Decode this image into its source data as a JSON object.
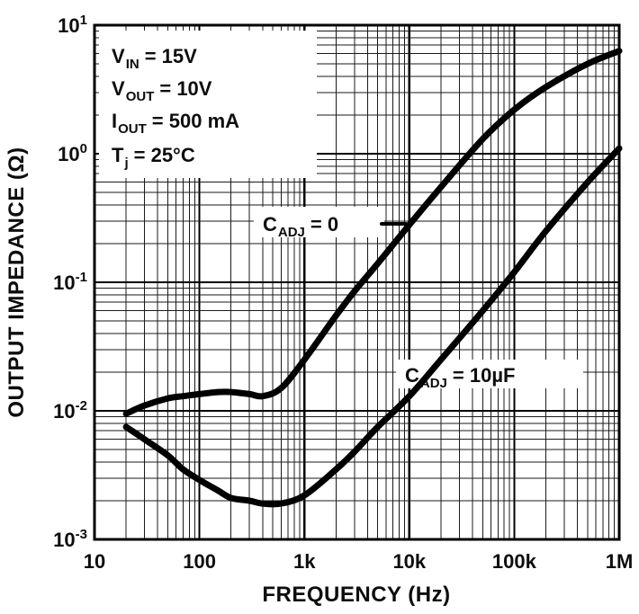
{
  "chart_data": {
    "type": "line",
    "x_scale": "log",
    "y_scale": "log",
    "xlabel": "FREQUENCY (Hz)",
    "ylabel": "OUTPUT IMPEDANCE (Ω)",
    "xlim": [
      10,
      1000000
    ],
    "ylim": [
      0.001,
      10
    ],
    "grid": "log minor and major gridlines on both axes",
    "legend_position": "inline curve labels",
    "x_ticks": [
      {
        "value": 10,
        "label": "10"
      },
      {
        "value": 100,
        "label": "100"
      },
      {
        "value": 1000,
        "label": "1k"
      },
      {
        "value": 10000,
        "label": "10k"
      },
      {
        "value": 100000,
        "label": "100k"
      },
      {
        "value": 1000000,
        "label": "1M"
      }
    ],
    "y_ticks": [
      {
        "value": 10,
        "base": "10",
        "exp": "1"
      },
      {
        "value": 1,
        "base": "10",
        "exp": "0"
      },
      {
        "value": 0.1,
        "base": "10",
        "exp": "-1"
      },
      {
        "value": 0.01,
        "base": "10",
        "exp": "-2"
      },
      {
        "value": 0.001,
        "base": "10",
        "exp": "-3"
      }
    ],
    "conditions": [
      {
        "main": "V",
        "sub": "IN",
        "rest": "= 15V"
      },
      {
        "main": "V",
        "sub": "OUT",
        "rest": "= 10V"
      },
      {
        "main": "I",
        "sub": "OUT",
        "rest": "= 500 mA"
      },
      {
        "main": "T",
        "sub": "j",
        "rest": "= 25°C"
      }
    ],
    "series": [
      {
        "name": "CADJ = 0",
        "label": {
          "main": "C",
          "sub": "ADJ",
          "rest": "= 0"
        },
        "x": [
          20,
          30,
          50,
          70,
          100,
          150,
          200,
          300,
          400,
          600,
          1000,
          2000,
          3000,
          5000,
          10000,
          20000,
          50000,
          100000,
          200000,
          500000,
          1000000
        ],
        "y": [
          0.0095,
          0.011,
          0.0125,
          0.013,
          0.0135,
          0.014,
          0.014,
          0.0135,
          0.013,
          0.015,
          0.025,
          0.055,
          0.085,
          0.14,
          0.28,
          0.55,
          1.3,
          2.2,
          3.3,
          5.0,
          6.3
        ]
      },
      {
        "name": "CADJ = 10µF",
        "label": {
          "main": "C",
          "sub": "ADJ",
          "rest": "= 10µF"
        },
        "x": [
          20,
          30,
          50,
          70,
          100,
          150,
          200,
          300,
          400,
          600,
          1000,
          2000,
          3000,
          5000,
          10000,
          20000,
          50000,
          100000,
          200000,
          500000,
          1000000
        ],
        "y": [
          0.0075,
          0.006,
          0.0045,
          0.0035,
          0.0029,
          0.0024,
          0.0021,
          0.002,
          0.0019,
          0.0019,
          0.0022,
          0.0035,
          0.0048,
          0.0075,
          0.013,
          0.025,
          0.06,
          0.12,
          0.25,
          0.6,
          1.1
        ]
      }
    ]
  }
}
